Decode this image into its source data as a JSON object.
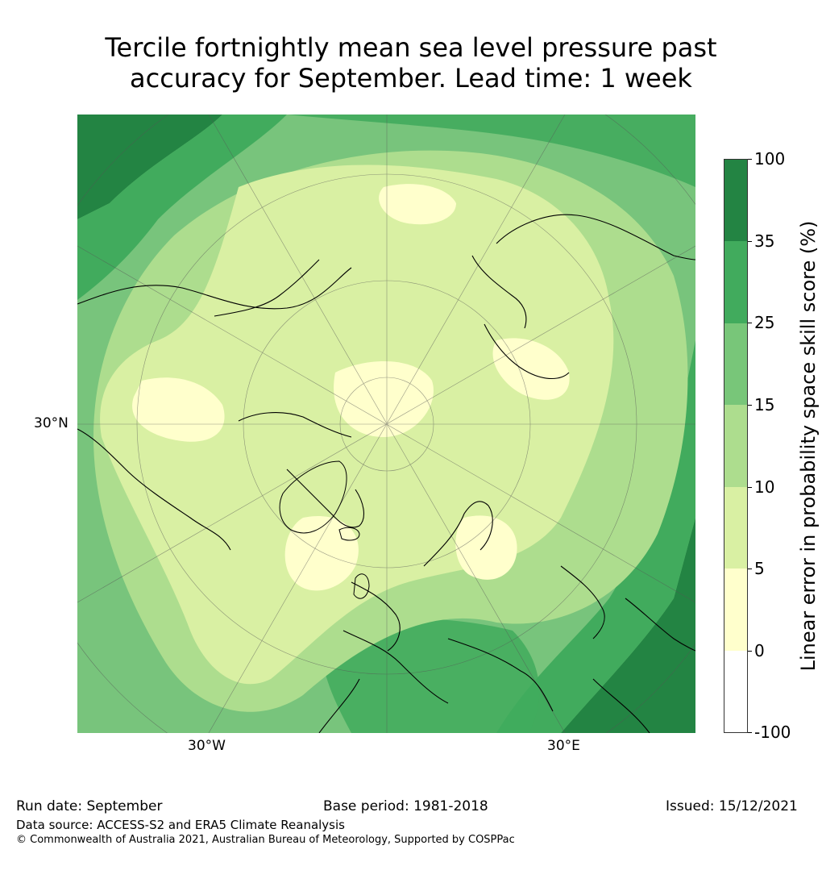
{
  "title_lines": [
    "Tercile fortnightly mean sea level pressure past",
    "accuracy for September. Lead time: 1 week"
  ],
  "map": {
    "projection": "north polar stereographic",
    "labels": {
      "lat": "30°N",
      "lon_west": "30°W",
      "lon_east": "30°E"
    },
    "colors": {
      "ocean_base": "#78c47c",
      "lt0_5": "#ffffcc",
      "lt5_10": "#d9f0a3",
      "lt10_15": "#addd8e",
      "lt15_25": "#78c679",
      "lt25_35": "#41ab5d",
      "ge35": "#238443",
      "coast": "#000000",
      "grid": "#555555"
    }
  },
  "colorbar": {
    "label": "Linear error in probability space skill score (%)",
    "ticks": [
      "100",
      "35",
      "25",
      "15",
      "10",
      "5",
      "0",
      "-100"
    ],
    "bands": [
      {
        "range": "35–100",
        "color": "#238443"
      },
      {
        "range": "25–35",
        "color": "#41ab5d"
      },
      {
        "range": "15–25",
        "color": "#78c679"
      },
      {
        "range": "10–15",
        "color": "#addd8e"
      },
      {
        "range": "5–10",
        "color": "#d9f0a3"
      },
      {
        "range": "0–5",
        "color": "#ffffcc"
      },
      {
        "range": "-100–0",
        "color": "#ffffff"
      }
    ]
  },
  "footer": {
    "run_date": "Run date: September",
    "base_period": "Base period: 1981-2018",
    "issued": "Issued: 15/12/2021",
    "data_source": "Data source: ACCESS-S2 and ERA5 Climate Reanalysis",
    "copyright": "© Commonwealth of Australia 2021, Australian Bureau of Meteorology, Supported by COSPPac"
  }
}
